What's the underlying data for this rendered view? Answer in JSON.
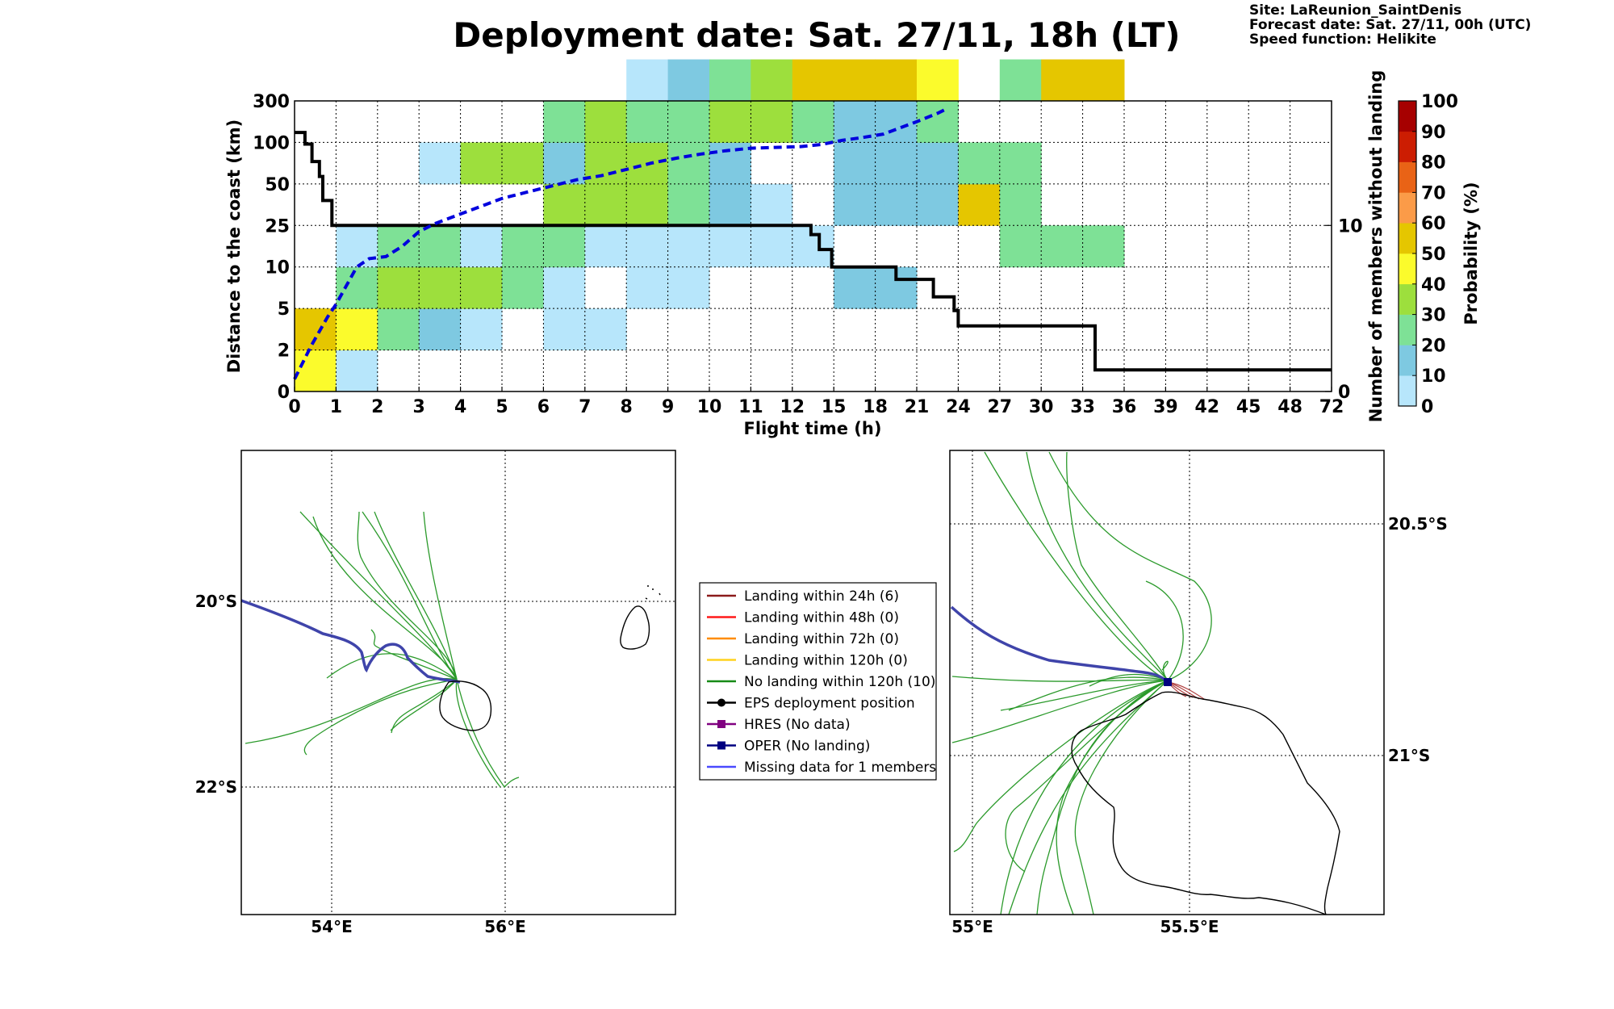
{
  "header": {
    "title": "Deployment date: Sat. 27/11, 18h (LT)",
    "site": "Site: LaReunion_SaintDenis",
    "forecast": "Forecast date: Sat. 27/11, 00h (UTC)",
    "speed": "Speed function: Helikite"
  },
  "chart_data": [
    {
      "type": "heatmap",
      "title": "",
      "xlabel": "Flight time (h)",
      "ylabel": "Distance to the coast (km)",
      "y2label": "Number of members without landing",
      "x_ticks": [
        "0",
        "1",
        "2",
        "3",
        "4",
        "5",
        "6",
        "7",
        "8",
        "9",
        "10",
        "11",
        "12",
        "15",
        "18",
        "21",
        "24",
        "27",
        "30",
        "33",
        "36",
        "39",
        "42",
        "45",
        "48",
        "72"
      ],
      "y_ticks": [
        "0",
        "2",
        "5",
        "10",
        "25",
        "50",
        "100",
        "300"
      ],
      "y2_ticks": [
        {
          "label": "10",
          "value": 10
        },
        {
          "label": "0",
          "value": 0
        }
      ],
      "y2lim": [
        0,
        17.5
      ],
      "grid": true,
      "colorbar": {
        "label": "Probability (%)",
        "ticks": [
          "0",
          "10",
          "20",
          "30",
          "40",
          "50",
          "60",
          "70",
          "80",
          "90",
          "100"
        ],
        "colors": [
          "#b7e6fb",
          "#7ec9e1",
          "#7ee196",
          "#9ddf3d",
          "#fbfb2c",
          "#e5c600",
          "#fb9b48",
          "#e96316",
          "#cc1d02",
          "#a60000"
        ]
      },
      "cells": [
        {
          "x": 0,
          "y": 0,
          "p": 40
        },
        {
          "x": 0,
          "y": 1,
          "p": 50
        },
        {
          "x": 1,
          "y": 0,
          "p": 0
        },
        {
          "x": 1,
          "y": 1,
          "p": 40
        },
        {
          "x": 1,
          "y": 2,
          "p": 20
        },
        {
          "x": 1,
          "y": 3,
          "p": 0
        },
        {
          "x": 2,
          "y": 1,
          "p": 20
        },
        {
          "x": 2,
          "y": 2,
          "p": 30
        },
        {
          "x": 2,
          "y": 3,
          "p": 20
        },
        {
          "x": 3,
          "y": 1,
          "p": 10
        },
        {
          "x": 3,
          "y": 2,
          "p": 30
        },
        {
          "x": 3,
          "y": 3,
          "p": 20
        },
        {
          "x": 3,
          "y": 5,
          "p": 0
        },
        {
          "x": 4,
          "y": 1,
          "p": 0
        },
        {
          "x": 4,
          "y": 2,
          "p": 30
        },
        {
          "x": 4,
          "y": 3,
          "p": 0
        },
        {
          "x": 4,
          "y": 5,
          "p": 30
        },
        {
          "x": 5,
          "y": 2,
          "p": 20
        },
        {
          "x": 5,
          "y": 3,
          "p": 20
        },
        {
          "x": 5,
          "y": 5,
          "p": 30
        },
        {
          "x": 6,
          "y": 1,
          "p": 0
        },
        {
          "x": 6,
          "y": 2,
          "p": 0
        },
        {
          "x": 6,
          "y": 3,
          "p": 20
        },
        {
          "x": 6,
          "y": 4,
          "p": 30
        },
        {
          "x": 6,
          "y": 5,
          "p": 10
        },
        {
          "x": 6,
          "y": 6,
          "p": 20
        },
        {
          "x": 7,
          "y": 1,
          "p": 0
        },
        {
          "x": 7,
          "y": 3,
          "p": 0
        },
        {
          "x": 7,
          "y": 4,
          "p": 30
        },
        {
          "x": 7,
          "y": 5,
          "p": 30
        },
        {
          "x": 7,
          "y": 6,
          "p": 30
        },
        {
          "x": 8,
          "y": 2,
          "p": 0
        },
        {
          "x": 8,
          "y": 3,
          "p": 0
        },
        {
          "x": 8,
          "y": 4,
          "p": 30
        },
        {
          "x": 8,
          "y": 5,
          "p": 30
        },
        {
          "x": 8,
          "y": 6,
          "p": 20
        },
        {
          "x": 8,
          "y": 7,
          "p": 0
        },
        {
          "x": 9,
          "y": 2,
          "p": 0
        },
        {
          "x": 9,
          "y": 3,
          "p": 0
        },
        {
          "x": 9,
          "y": 4,
          "p": 20
        },
        {
          "x": 9,
          "y": 5,
          "p": 20
        },
        {
          "x": 9,
          "y": 6,
          "p": 20
        },
        {
          "x": 9,
          "y": 7,
          "p": 10
        },
        {
          "x": 10,
          "y": 3,
          "p": 0
        },
        {
          "x": 10,
          "y": 4,
          "p": 10
        },
        {
          "x": 10,
          "y": 5,
          "p": 10
        },
        {
          "x": 10,
          "y": 6,
          "p": 30
        },
        {
          "x": 10,
          "y": 7,
          "p": 20
        },
        {
          "x": 11,
          "y": 3,
          "p": 0
        },
        {
          "x": 11,
          "y": 4,
          "p": 0
        },
        {
          "x": 11,
          "y": 6,
          "p": 30
        },
        {
          "x": 11,
          "y": 7,
          "p": 30
        },
        {
          "x": 12,
          "y": 3,
          "p": 0
        },
        {
          "x": 12,
          "y": 6,
          "p": 20
        },
        {
          "x": 12,
          "y": 7,
          "p": 50
        },
        {
          "x": 13,
          "y": 2,
          "p": 10
        },
        {
          "x": 13,
          "y": 4,
          "p": 10
        },
        {
          "x": 13,
          "y": 5,
          "p": 10
        },
        {
          "x": 13,
          "y": 6,
          "p": 10
        },
        {
          "x": 13,
          "y": 7,
          "p": 50
        },
        {
          "x": 14,
          "y": 2,
          "p": 10
        },
        {
          "x": 14,
          "y": 4,
          "p": 10
        },
        {
          "x": 14,
          "y": 5,
          "p": 10
        },
        {
          "x": 14,
          "y": 6,
          "p": 10
        },
        {
          "x": 14,
          "y": 7,
          "p": 50
        },
        {
          "x": 15,
          "y": 4,
          "p": 10
        },
        {
          "x": 15,
          "y": 5,
          "p": 10
        },
        {
          "x": 15,
          "y": 6,
          "p": 20
        },
        {
          "x": 15,
          "y": 7,
          "p": 40
        },
        {
          "x": 16,
          "y": 4,
          "p": 50
        },
        {
          "x": 16,
          "y": 5,
          "p": 20
        },
        {
          "x": 17,
          "y": 3,
          "p": 20
        },
        {
          "x": 17,
          "y": 4,
          "p": 20
        },
        {
          "x": 17,
          "y": 5,
          "p": 20
        },
        {
          "x": 17,
          "y": 7,
          "p": 20
        },
        {
          "x": 18,
          "y": 3,
          "p": 20
        },
        {
          "x": 18,
          "y": 7,
          "p": 50
        },
        {
          "x": 19,
          "y": 3,
          "p": 20
        },
        {
          "x": 19,
          "y": 7,
          "p": 50
        }
      ],
      "series": [
        {
          "style": "solid-black",
          "points": [
            [
              0,
              6.24
            ],
            [
              0.25,
              6.24
            ],
            [
              0.25,
              5.96
            ],
            [
              0.42,
              5.96
            ],
            [
              0.42,
              5.54
            ],
            [
              0.6,
              5.54
            ],
            [
              0.6,
              5.18
            ],
            [
              0.68,
              5.18
            ],
            [
              0.68,
              4.6
            ],
            [
              0.9,
              4.6
            ],
            [
              0.9,
              4.0
            ],
            [
              12.45,
              4.0
            ],
            [
              12.45,
              3.78
            ],
            [
              12.65,
              3.78
            ],
            [
              12.65,
              3.42
            ],
            [
              12.95,
              3.42
            ],
            [
              12.95,
              3.0
            ],
            [
              14.5,
              3.0
            ],
            [
              14.5,
              2.7
            ],
            [
              15.4,
              2.7
            ],
            [
              15.4,
              2.28
            ],
            [
              15.9,
              2.28
            ],
            [
              15.9,
              1.95
            ],
            [
              16.0,
              1.95
            ],
            [
              16.0,
              1.58
            ],
            [
              19.3,
              1.58
            ],
            [
              19.3,
              0.52
            ],
            [
              25,
              0.52
            ]
          ]
        },
        {
          "style": "dashed-blue",
          "points": [
            [
              0,
              0.3
            ],
            [
              0.4,
              1.1
            ],
            [
              0.8,
              1.8
            ],
            [
              1.0,
              2.1
            ],
            [
              1.5,
              3.0
            ],
            [
              1.8,
              3.2
            ],
            [
              2.2,
              3.25
            ],
            [
              2.6,
              3.5
            ],
            [
              3.0,
              3.85
            ],
            [
              3.4,
              4.05
            ],
            [
              3.8,
              4.2
            ],
            [
              4.2,
              4.35
            ],
            [
              4.6,
              4.5
            ],
            [
              5.0,
              4.65
            ],
            [
              5.6,
              4.8
            ],
            [
              6.2,
              4.95
            ],
            [
              6.8,
              5.1
            ],
            [
              7.4,
              5.2
            ],
            [
              8.0,
              5.35
            ],
            [
              8.6,
              5.5
            ],
            [
              9.2,
              5.62
            ],
            [
              9.8,
              5.72
            ],
            [
              10.4,
              5.8
            ],
            [
              11.0,
              5.86
            ],
            [
              11.6,
              5.88
            ],
            [
              12.2,
              5.9
            ],
            [
              12.7,
              5.95
            ],
            [
              13.2,
              6.05
            ],
            [
              13.7,
              6.12
            ],
            [
              14.2,
              6.2
            ],
            [
              14.6,
              6.35
            ],
            [
              15.0,
              6.5
            ],
            [
              15.5,
              6.7
            ],
            [
              15.7,
              6.8
            ]
          ]
        }
      ]
    },
    {
      "type": "map",
      "title": "",
      "x_ticks": [
        "54°E",
        "56°E"
      ],
      "y_ticks": [
        "20°S",
        "22°S"
      ],
      "grid": true
    },
    {
      "type": "map",
      "title": "",
      "x_ticks": [
        "55°E",
        "55.5°E"
      ],
      "y_ticks": [
        "20.5°S",
        "21°S"
      ],
      "grid": true
    }
  ],
  "legend": {
    "items": [
      {
        "label": "Landing within 24h (6)",
        "color": "#8b1a1a",
        "marker": "none"
      },
      {
        "label": "Landing within 48h (0)",
        "color": "#ff1a1a",
        "marker": "none"
      },
      {
        "label": "Landing within 72h (0)",
        "color": "#ff8c00",
        "marker": "none"
      },
      {
        "label": "Landing within 120h (0)",
        "color": "#ffd21f",
        "marker": "none"
      },
      {
        "label": "No landing within 120h (10)",
        "color": "#168a16",
        "marker": "none"
      },
      {
        "label": "EPS deployment position",
        "color": "#000000",
        "marker": "circle"
      },
      {
        "label": "HRES (No data)",
        "color": "#800080",
        "marker": "square"
      },
      {
        "label": "OPER (No landing)",
        "color": "#000080",
        "marker": "square"
      },
      {
        "label": "Missing data for 1 members",
        "color": "#4a4aff",
        "marker": "none"
      }
    ]
  },
  "colors": {
    "oper_track": "#3f44aa",
    "eps_track": "#2b9a2b",
    "landing_track": "#b04040",
    "coast": "#000000"
  }
}
